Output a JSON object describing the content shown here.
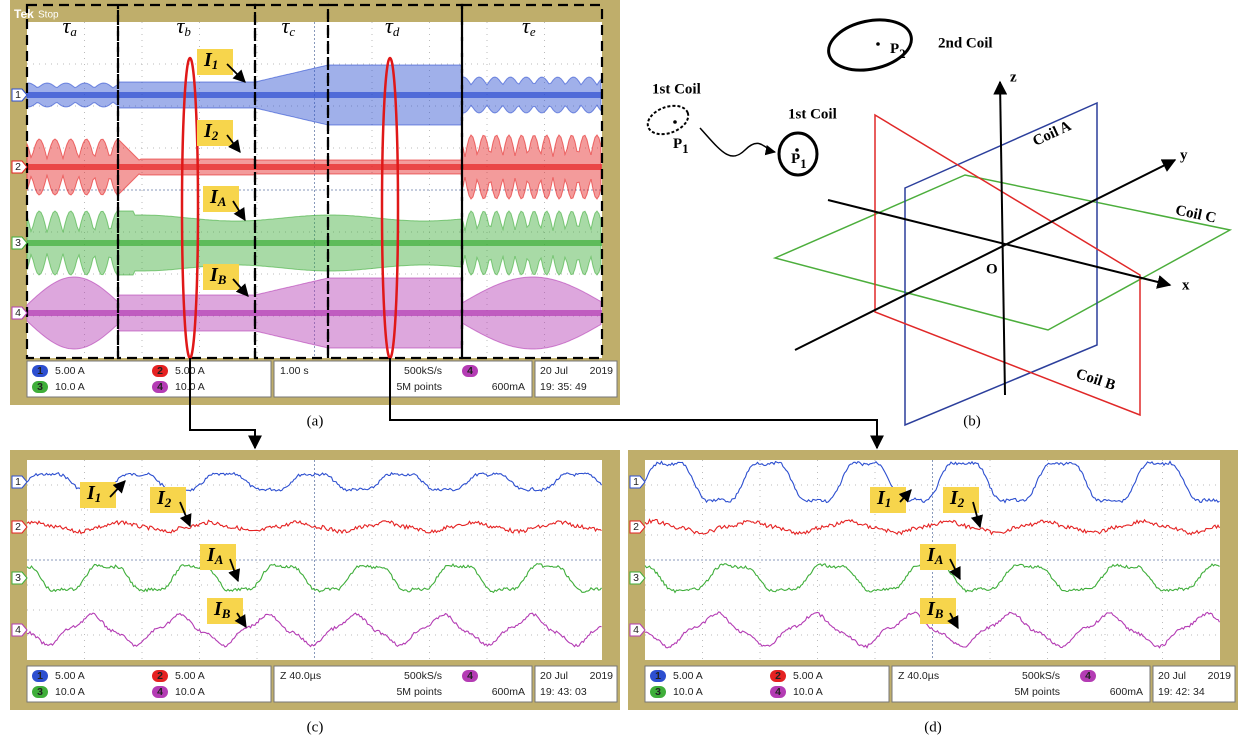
{
  "panel_a": {
    "caption": "(a)",
    "brand": "Tek",
    "state": "Stop",
    "intervals": [
      {
        "base": "τ",
        "sub": "a"
      },
      {
        "base": "τ",
        "sub": "b"
      },
      {
        "base": "τ",
        "sub": "c"
      },
      {
        "base": "τ",
        "sub": "d"
      },
      {
        "base": "τ",
        "sub": "e"
      }
    ],
    "markers": [
      "1",
      "2",
      "3",
      "4"
    ],
    "labels": [
      {
        "base": "I",
        "sub": "1"
      },
      {
        "base": "I",
        "sub": "2"
      },
      {
        "base": "I",
        "sub": "A"
      },
      {
        "base": "I",
        "sub": "B"
      }
    ],
    "status": {
      "channels": [
        {
          "num": "1",
          "scale": "5.00 A"
        },
        {
          "num": "2",
          "scale": "5.00 A"
        },
        {
          "num": "3",
          "scale": "10.0 A"
        },
        {
          "num": "4",
          "scale": "10.0 A"
        }
      ],
      "time": "1.00 s",
      "rate": "500kS/s",
      "points": "5M points",
      "trig_ch": "4",
      "trig_level": "600mA",
      "date": "20 Jul",
      "year": "2019",
      "clock": "19: 35: 49"
    }
  },
  "panel_b": {
    "caption": "(b)",
    "second_coil": "2nd Coil",
    "p2": {
      "base": "P",
      "sub": "2"
    },
    "first_coil_a": "1st Coil",
    "p1_a": {
      "base": "P",
      "sub": "1"
    },
    "first_coil_b": "1st Coil",
    "p1_b": {
      "base": "P",
      "sub": "1"
    },
    "axis_z": "z",
    "axis_y": "y",
    "axis_x": "x",
    "origin": "O",
    "coil_a": "Coil A",
    "coil_b": "Coil B",
    "coil_c": "Coil C"
  },
  "panel_c": {
    "caption": "(c)",
    "markers": [
      "1",
      "2",
      "3",
      "4"
    ],
    "labels": [
      {
        "base": "I",
        "sub": "1"
      },
      {
        "base": "I",
        "sub": "2"
      },
      {
        "base": "I",
        "sub": "A"
      },
      {
        "base": "I",
        "sub": "B"
      }
    ],
    "status": {
      "channels": [
        {
          "num": "1",
          "scale": "5.00 A"
        },
        {
          "num": "2",
          "scale": "5.00 A"
        },
        {
          "num": "3",
          "scale": "10.0 A"
        },
        {
          "num": "4",
          "scale": "10.0 A"
        }
      ],
      "time": "Z 40.0µs",
      "rate": "500kS/s",
      "points": "5M points",
      "trig_ch": "4",
      "trig_level": "600mA",
      "date": "20 Jul",
      "year": "2019",
      "clock": "19: 43: 03"
    }
  },
  "panel_d": {
    "caption": "(d)",
    "markers": [
      "1",
      "2",
      "3",
      "4"
    ],
    "labels": [
      {
        "base": "I",
        "sub": "1"
      },
      {
        "base": "I",
        "sub": "2"
      },
      {
        "base": "I",
        "sub": "A"
      },
      {
        "base": "I",
        "sub": "B"
      }
    ],
    "status": {
      "channels": [
        {
          "num": "1",
          "scale": "5.00 A"
        },
        {
          "num": "2",
          "scale": "5.00 A"
        },
        {
          "num": "3",
          "scale": "10.0 A"
        },
        {
          "num": "4",
          "scale": "10.0 A"
        }
      ],
      "time": "Z 40.0µs",
      "rate": "500kS/s",
      "points": "5M points",
      "trig_ch": "4",
      "trig_level": "600mA",
      "date": "20 Jul",
      "year": "2019",
      "clock": "19: 42: 34"
    }
  }
}
